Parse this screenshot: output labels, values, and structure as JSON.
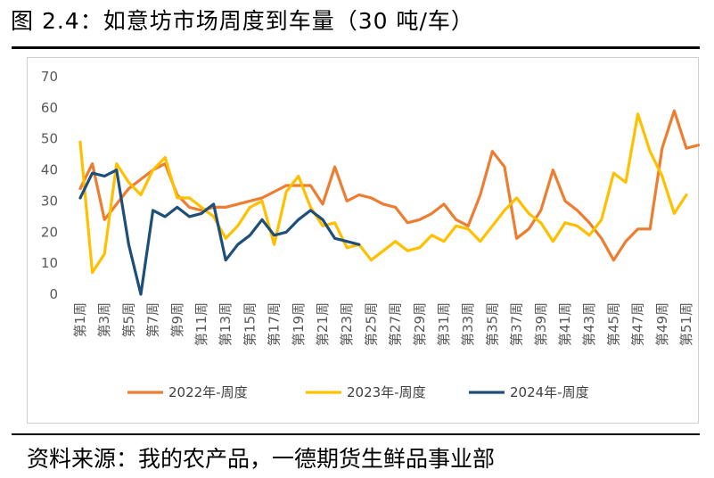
{
  "figure": {
    "title": "图 2.4：如意坊市场周度到车量（30 吨/车）",
    "source": "资料来源：我的农产品，一德期货生鲜品事业部"
  },
  "chart_data": {
    "type": "line",
    "title": "",
    "xlabel": "",
    "ylabel": "",
    "ylim": [
      0,
      70
    ],
    "yticks": [
      0,
      10,
      20,
      30,
      40,
      50,
      60,
      70
    ],
    "grid": false,
    "legend": "bottom",
    "categories": [
      "第1周",
      "第2周",
      "第3周",
      "第4周",
      "第5周",
      "第6周",
      "第7周",
      "第8周",
      "第9周",
      "第10周",
      "第11周",
      "第12周",
      "第13周",
      "第14周",
      "第15周",
      "第16周",
      "第17周",
      "第18周",
      "第19周",
      "第20周",
      "第21周",
      "第22周",
      "第23周",
      "第24周",
      "第25周",
      "第26周",
      "第27周",
      "第28周",
      "第29周",
      "第30周",
      "第31周",
      "第32周",
      "第33周",
      "第34周",
      "第35周",
      "第36周",
      "第37周",
      "第38周",
      "第39周",
      "第40周",
      "第41周",
      "第42周",
      "第43周",
      "第44周",
      "第45周",
      "第46周",
      "第47周",
      "第48周",
      "第49周",
      "第50周",
      "第51周",
      "第52周"
    ],
    "visible_category_labels": [
      "第1周",
      "第3周",
      "第5周",
      "第7周",
      "第9周",
      "第11周",
      "第13周",
      "第15周",
      "第17周",
      "第19周",
      "第21周",
      "第23周",
      "第25周",
      "第27周",
      "第29周",
      "第31周",
      "第33周",
      "第35周",
      "第37周",
      "第39周",
      "第41周",
      "第43周",
      "第45周",
      "第47周",
      "第49周",
      "第51周"
    ],
    "series": [
      {
        "name": "2022年-周度",
        "color": "#ed7d31",
        "values": [
          34,
          42,
          24,
          29,
          34,
          37,
          40,
          42,
          32,
          28,
          27,
          28,
          28,
          29,
          30,
          31,
          33,
          35,
          35,
          35,
          29,
          41,
          30,
          32,
          31,
          29,
          28,
          23,
          24,
          26,
          29,
          24,
          22,
          32,
          46,
          41,
          18,
          21,
          27,
          40,
          30,
          27,
          23,
          18,
          11,
          17,
          21,
          21,
          47,
          59,
          47,
          48
        ]
      },
      {
        "name": "2023年-周度",
        "color": "#ffc000",
        "values": [
          49,
          7,
          13,
          42,
          36,
          32,
          40,
          44,
          31,
          31,
          28,
          25,
          18,
          22,
          28,
          30,
          16,
          33,
          38,
          28,
          22,
          23,
          15,
          16,
          11,
          14,
          17,
          14,
          15,
          19,
          17,
          22,
          21,
          17,
          22,
          27,
          31,
          26,
          23,
          17,
          23,
          22,
          19,
          24,
          39,
          36,
          58,
          46,
          38,
          26,
          32,
          null
        ]
      },
      {
        "name": "2024年-周度",
        "color": "#1f4e79",
        "values": [
          31,
          39,
          38,
          40,
          16,
          0,
          27,
          25,
          28,
          25,
          26,
          29,
          11,
          16,
          19,
          24,
          19,
          20,
          24,
          27,
          24,
          18,
          17,
          16,
          null,
          null,
          null,
          null,
          null,
          null,
          null,
          null,
          null,
          null,
          null,
          null,
          null,
          null,
          null,
          null,
          null,
          null,
          null,
          null,
          null,
          null,
          null,
          null,
          null,
          null,
          null,
          null
        ]
      }
    ]
  }
}
